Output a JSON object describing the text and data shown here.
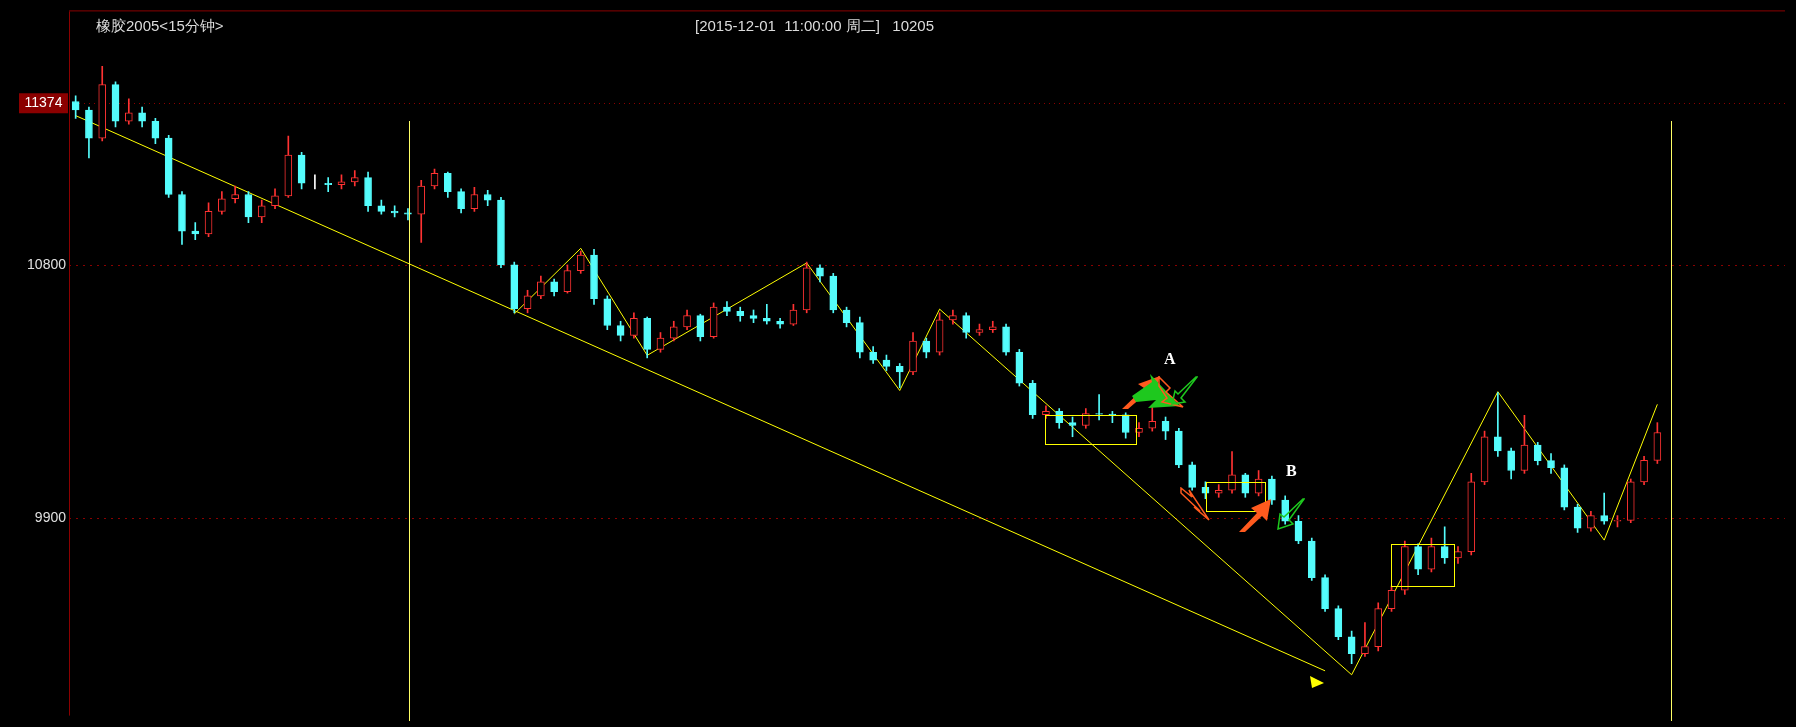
{
  "chart_data": {
    "type": "candlestick",
    "title": "橡胶2005<15分钟>",
    "subtitle": "[2015-12-01  11:00:00 周二]   10205",
    "categories": [
      null,
      null,
      null,
      null,
      null,
      null,
      null,
      null,
      null,
      null,
      null,
      null,
      null,
      null,
      null,
      null,
      null,
      null,
      null,
      null,
      null,
      null,
      null,
      null,
      null,
      null,
      null,
      null,
      null,
      null,
      null,
      null,
      null,
      null,
      null,
      null,
      null,
      null,
      null,
      null,
      null,
      null,
      null,
      null,
      null,
      null,
      null,
      null,
      null,
      null,
      null,
      null,
      null,
      null,
      null,
      null,
      null,
      null,
      null,
      null,
      null,
      null,
      null,
      null,
      null,
      null,
      null,
      null,
      null,
      null,
      null,
      null,
      null,
      null,
      null,
      null,
      null,
      null,
      null,
      null,
      null,
      null,
      null,
      null,
      null,
      null,
      null,
      null,
      null,
      null,
      null,
      null,
      null,
      null,
      null,
      null,
      null,
      null,
      null,
      null,
      null,
      null,
      null,
      null,
      null,
      null,
      null,
      null,
      null,
      null,
      null,
      null,
      null,
      null,
      null,
      null,
      null,
      null,
      null,
      null
    ],
    "ohlc": [
      [
        11380,
        11400,
        11320,
        11350
      ],
      [
        11350,
        11360,
        11180,
        11250
      ],
      [
        11250,
        11505,
        11240,
        11440
      ],
      [
        11440,
        11450,
        11290,
        11310
      ],
      [
        11310,
        11390,
        11300,
        11340
      ],
      [
        11340,
        11360,
        11290,
        11310
      ],
      [
        11310,
        11320,
        11230,
        11250
      ],
      [
        11250,
        11260,
        11040,
        11050
      ],
      [
        11050,
        11060,
        10873,
        10920
      ],
      [
        10920,
        10950,
        10890,
        10910
      ],
      [
        10910,
        11020,
        10900,
        10990
      ],
      [
        10990,
        11060,
        10980,
        11035
      ],
      [
        11035,
        11080,
        11020,
        11050
      ],
      [
        11050,
        11060,
        10950,
        10970
      ],
      [
        10970,
        11030,
        10950,
        11010
      ],
      [
        11010,
        11070,
        11000,
        11045
      ],
      [
        11045,
        11257,
        11040,
        11190
      ],
      [
        11190,
        11200,
        11070,
        11090
      ],
      [
        11090,
        11120,
        11070,
        11090
      ],
      [
        11090,
        11110,
        11060,
        11085
      ],
      [
        11085,
        11120,
        11070,
        11095
      ],
      [
        11095,
        11135,
        11080,
        11110
      ],
      [
        11110,
        11130,
        10990,
        11010
      ],
      [
        11010,
        11030,
        10980,
        10990
      ],
      [
        10990,
        11010,
        10970,
        10985
      ],
      [
        10985,
        11000,
        10960,
        10980
      ],
      [
        10980,
        11100,
        10880,
        11080
      ],
      [
        11080,
        11140,
        11070,
        11125
      ],
      [
        11125,
        11130,
        11040,
        11060
      ],
      [
        11060,
        11070,
        10985,
        11000
      ],
      [
        11000,
        11075,
        10990,
        11050
      ],
      [
        11050,
        11065,
        11010,
        11030
      ],
      [
        11030,
        11040,
        10790,
        10800
      ],
      [
        10800,
        10810,
        10630,
        10645
      ],
      [
        10645,
        10710,
        10630,
        10690
      ],
      [
        10690,
        10760,
        10680,
        10740
      ],
      [
        10740,
        10750,
        10690,
        10705
      ],
      [
        10705,
        10800,
        10700,
        10780
      ],
      [
        10780,
        10849,
        10770,
        10835
      ],
      [
        10835,
        10855,
        10660,
        10680
      ],
      [
        10680,
        10690,
        10570,
        10585
      ],
      [
        10585,
        10600,
        10530,
        10550
      ],
      [
        10550,
        10630,
        10540,
        10610
      ],
      [
        10610,
        10615,
        10470,
        10500
      ],
      [
        10500,
        10560,
        10490,
        10540
      ],
      [
        10540,
        10600,
        10530,
        10580
      ],
      [
        10580,
        10640,
        10570,
        10620
      ],
      [
        10620,
        10625,
        10530,
        10545
      ],
      [
        10545,
        10665,
        10540,
        10650
      ],
      [
        10650,
        10670,
        10620,
        10635
      ],
      [
        10635,
        10650,
        10600,
        10620
      ],
      [
        10620,
        10640,
        10595,
        10610
      ],
      [
        10610,
        10660,
        10590,
        10600
      ],
      [
        10600,
        10610,
        10575,
        10590
      ],
      [
        10590,
        10660,
        10585,
        10640
      ],
      [
        10640,
        10810,
        10630,
        10790
      ],
      [
        10790,
        10800,
        10740,
        10760
      ],
      [
        10760,
        10770,
        10630,
        10640
      ],
      [
        10640,
        10650,
        10580,
        10595
      ],
      [
        10595,
        10615,
        10470,
        10490
      ],
      [
        10490,
        10510,
        10450,
        10462
      ],
      [
        10462,
        10480,
        10425,
        10440
      ],
      [
        10440,
        10450,
        10364,
        10420
      ],
      [
        10420,
        10560,
        10410,
        10530
      ],
      [
        10530,
        10540,
        10470,
        10490
      ],
      [
        10490,
        10630,
        10480,
        10605
      ],
      [
        10605,
        10640,
        10590,
        10620
      ],
      [
        10620,
        10630,
        10540,
        10560
      ],
      [
        10560,
        10590,
        10550,
        10570
      ],
      [
        10570,
        10600,
        10560,
        10580
      ],
      [
        10580,
        10590,
        10480,
        10490
      ],
      [
        10490,
        10500,
        10370,
        10380
      ],
      [
        10380,
        10390,
        10255,
        10268
      ],
      [
        10268,
        10300,
        10255,
        10280
      ],
      [
        10280,
        10290,
        10220,
        10240
      ],
      [
        10240,
        10260,
        10190,
        10230
      ],
      [
        10230,
        10290,
        10220,
        10272
      ],
      [
        10272,
        10340,
        10250,
        10270
      ],
      [
        10270,
        10280,
        10240,
        10268
      ],
      [
        10268,
        10275,
        10185,
        10205
      ],
      [
        10205,
        10240,
        10190,
        10220
      ],
      [
        10220,
        10300,
        10210,
        10245
      ],
      [
        10245,
        10260,
        10180,
        10210
      ],
      [
        10210,
        10220,
        10080,
        10090
      ],
      [
        10090,
        10100,
        10000,
        10010
      ],
      [
        10010,
        10030,
        9970,
        9990
      ],
      [
        9990,
        10020,
        9975,
        10000
      ],
      [
        10000,
        10137,
        9990,
        10055
      ],
      [
        10055,
        10060,
        9975,
        9990
      ],
      [
        9990,
        10070,
        9980,
        10040
      ],
      [
        10040,
        10050,
        9950,
        9965
      ],
      [
        9965,
        9980,
        9880,
        9890
      ],
      [
        9890,
        9910,
        9810,
        9820
      ],
      [
        9820,
        9830,
        9680,
        9690
      ],
      [
        9690,
        9700,
        9570,
        9580
      ],
      [
        9580,
        9590,
        9470,
        9480
      ],
      [
        9480,
        9500,
        9384,
        9420
      ],
      [
        9420,
        9530,
        9410,
        9445
      ],
      [
        9445,
        9600,
        9430,
        9580
      ],
      [
        9580,
        9660,
        9570,
        9645
      ],
      [
        9645,
        9820,
        9630,
        9800
      ],
      [
        9800,
        9810,
        9700,
        9720
      ],
      [
        9720,
        9830,
        9710,
        9800
      ],
      [
        9800,
        9870,
        9740,
        9760
      ],
      [
        9760,
        9800,
        9740,
        9782
      ],
      [
        9782,
        10060,
        9770,
        10030
      ],
      [
        10030,
        10210,
        10020,
        10190
      ],
      [
        10190,
        10347,
        10120,
        10140
      ],
      [
        10140,
        10150,
        10040,
        10070
      ],
      [
        10070,
        10266,
        10060,
        10160
      ],
      [
        10160,
        10170,
        10090,
        10105
      ],
      [
        10105,
        10130,
        10060,
        10080
      ],
      [
        10080,
        10090,
        9930,
        9940
      ],
      [
        9940,
        9950,
        9850,
        9865
      ],
      [
        9865,
        9925,
        9855,
        9910
      ],
      [
        9910,
        9990,
        9880,
        9890
      ],
      [
        9890,
        9910,
        9870,
        9893
      ],
      [
        9893,
        10040,
        9885,
        10030
      ],
      [
        10030,
        10120,
        10020,
        10106
      ],
      [
        10106,
        10240,
        10095,
        10205
      ]
    ],
    "series": [
      {
        "type": "line",
        "color": "#ffff00",
        "values": [
          11330,
          null,
          null,
          null,
          null,
          null,
          null,
          null,
          null,
          null,
          null,
          null,
          null,
          null,
          null,
          null,
          null,
          null,
          null,
          null,
          null,
          null,
          null,
          null,
          null,
          null,
          null,
          null,
          null,
          null,
          null,
          null,
          null,
          null,
          null,
          null,
          null,
          null,
          null,
          null,
          null,
          null,
          null,
          null,
          null,
          null,
          null,
          null,
          null,
          null,
          null,
          null,
          null,
          null,
          null,
          null,
          null,
          null,
          null,
          null,
          null,
          null,
          null,
          null,
          null,
          null,
          null,
          null,
          null,
          null,
          null,
          null,
          null,
          null,
          null,
          null,
          null,
          null,
          null,
          null,
          null,
          null,
          null,
          null,
          null,
          null,
          null,
          null,
          null,
          null,
          null,
          null,
          null,
          null,
          9359,
          null,
          null,
          null,
          null,
          null,
          null,
          null,
          null,
          null,
          null,
          null,
          null,
          null,
          null,
          null,
          null,
          null,
          null,
          null,
          null,
          null,
          null,
          null,
          null,
          null
        ]
      },
      {
        "type": "line",
        "color": "#ffff00",
        "values": [
          null,
          null,
          null,
          null,
          null,
          null,
          null,
          null,
          null,
          null,
          null,
          null,
          null,
          null,
          null,
          null,
          null,
          null,
          null,
          null,
          null,
          null,
          null,
          null,
          null,
          null,
          null,
          null,
          null,
          null,
          null,
          null,
          null,
          10626,
          null,
          null,
          null,
          null,
          10859,
          null,
          null,
          null,
          null,
          10479,
          null,
          null,
          null,
          null,
          null,
          null,
          null,
          null,
          null,
          null,
          null,
          10807,
          null,
          null,
          null,
          null,
          null,
          null,
          10354,
          null,
          null,
          10643,
          null,
          null,
          null,
          null,
          null,
          null,
          null,
          null,
          null,
          null,
          null,
          null,
          null,
          null,
          null,
          null,
          null,
          null,
          null,
          null,
          null,
          null,
          null,
          null,
          null,
          null,
          null,
          null,
          null,
          null,
          9345,
          null,
          null,
          null,
          null,
          null,
          null,
          null,
          null,
          null,
          null,
          10350,
          null,
          null,
          null,
          null,
          null,
          null,
          null,
          9823,
          null,
          null,
          null,
          10305
        ]
      }
    ],
    "ylim": [
      9200,
      11700
    ],
    "yticks": [
      10800,
      9900
    ],
    "ref_lines": [
      {
        "axis": "y",
        "value": 11374,
        "label": "11374",
        "color": "#8b0000"
      }
    ],
    "annotations": [
      "A",
      "B"
    ],
    "grid": "y",
    "legend": false,
    "tick_labels": "y",
    "marker": "none",
    "line_style": "solid"
  }
}
